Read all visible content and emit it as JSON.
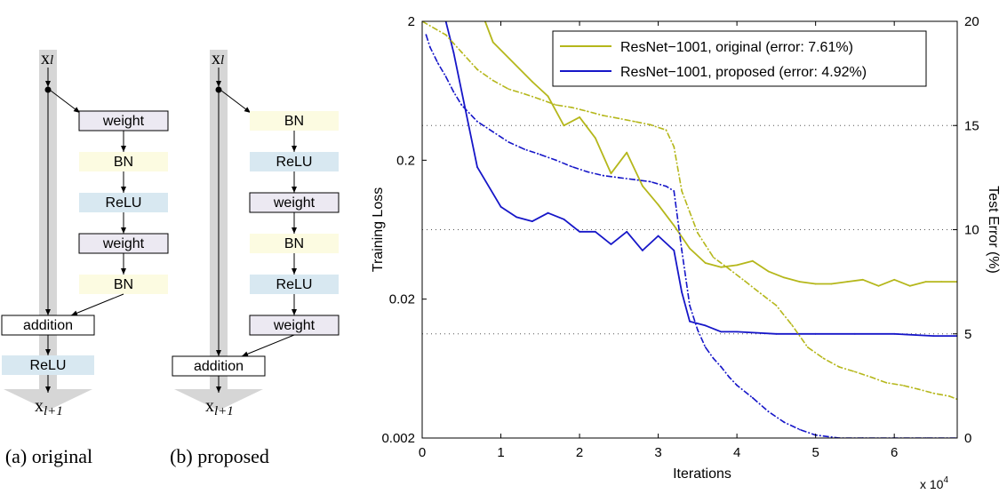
{
  "diagrams": [
    {
      "caption": "(a) original",
      "input_label": "x",
      "input_sub": "l",
      "output_label": "x",
      "output_sub": "l+1",
      "blocks": [
        {
          "label": "weight",
          "kind": "weight"
        },
        {
          "label": "BN",
          "kind": "bn"
        },
        {
          "label": "ReLU",
          "kind": "relu"
        },
        {
          "label": "weight",
          "kind": "weight"
        },
        {
          "label": "BN",
          "kind": "bn"
        }
      ],
      "addition_label": "addition",
      "after_label": "ReLU"
    },
    {
      "caption": "(b) proposed",
      "input_label": "x",
      "input_sub": "l",
      "output_label": "x",
      "output_sub": "l+1",
      "blocks": [
        {
          "label": "BN",
          "kind": "bn"
        },
        {
          "label": "ReLU",
          "kind": "relu"
        },
        {
          "label": "weight",
          "kind": "weight"
        },
        {
          "label": "BN",
          "kind": "bn"
        },
        {
          "label": "ReLU",
          "kind": "relu"
        },
        {
          "label": "weight",
          "kind": "weight"
        }
      ],
      "addition_label": "addition"
    }
  ],
  "colors": {
    "weight": "#ece9f2",
    "bn": "#fcfbe1",
    "relu": "#d8e8f1",
    "shortcut": "#d6d6d6",
    "original": "#b5b71b",
    "proposed": "#1616c8"
  },
  "chart_data": {
    "type": "line",
    "xlabel": "Iterations",
    "x_multiplier": "x 10",
    "x_multiplier_exp": "4",
    "ylabel_left": "Training Loss",
    "ylabel_right": "Test Error (%)",
    "xlim": [
      0,
      6.8
    ],
    "ylim_left": [
      0.002,
      2
    ],
    "yscale_left": "log",
    "ylim_right": [
      0,
      20
    ],
    "x_ticks": [
      "0",
      "1",
      "2",
      "3",
      "4",
      "5",
      "6"
    ],
    "y_left_ticks": [
      "0.002",
      "0.02",
      "0.2",
      "2"
    ],
    "y_right_ticks": [
      "0",
      "5",
      "10",
      "15",
      "20"
    ],
    "grid": "dotted horizontal at right-axis ticks",
    "legend_position": "top-right",
    "legend": [
      {
        "label": "ResNet−1001, original (error: 7.61%)",
        "color": "original"
      },
      {
        "label": "ResNet−1001, proposed (error: 4.92%)",
        "color": "proposed"
      }
    ],
    "series": [
      {
        "name": "ResNet−1001, original (error: 7.61%)",
        "role": "test_error",
        "color": "original",
        "style": "solid",
        "x": [
          0.8,
          0.9,
          1.4,
          1.6,
          1.8,
          2.0,
          2.2,
          2.4,
          2.6,
          2.8,
          3.0,
          3.2,
          3.4,
          3.6,
          3.8,
          4.0,
          4.2,
          4.4,
          4.6,
          4.8,
          5.0,
          5.2,
          5.4,
          5.6,
          5.8,
          6.0,
          6.2,
          6.4,
          6.6,
          6.8
        ],
        "y": [
          20.0,
          19.0,
          17.1,
          16.4,
          15.0,
          15.4,
          14.4,
          12.7,
          13.7,
          12.1,
          11.2,
          10.2,
          9.1,
          8.4,
          8.2,
          8.3,
          8.5,
          8.0,
          7.7,
          7.5,
          7.4,
          7.4,
          7.5,
          7.6,
          7.3,
          7.6,
          7.3,
          7.5,
          7.5,
          7.5
        ]
      },
      {
        "name": "ResNet−1001, proposed (error: 4.92%)",
        "role": "test_error",
        "color": "proposed",
        "style": "solid",
        "x": [
          0.3,
          0.4,
          0.7,
          1.0,
          1.2,
          1.4,
          1.6,
          1.8,
          2.0,
          2.2,
          2.4,
          2.6,
          2.8,
          3.0,
          3.2,
          3.3,
          3.4,
          3.6,
          3.8,
          4.0,
          4.5,
          5.0,
          5.5,
          6.0,
          6.5,
          6.8
        ],
        "y": [
          20.0,
          18.5,
          13.0,
          11.1,
          10.6,
          10.4,
          10.8,
          10.5,
          9.9,
          9.9,
          9.3,
          9.9,
          9.0,
          9.7,
          9.0,
          7.0,
          5.6,
          5.4,
          5.1,
          5.1,
          5.0,
          5.0,
          5.0,
          5.0,
          4.9,
          4.9
        ]
      },
      {
        "name": "ResNet−1001, original (error: 7.61%)",
        "role": "training_loss",
        "color": "original",
        "style": "dashed",
        "x": [
          0.0,
          0.3,
          0.5,
          0.7,
          0.9,
          1.1,
          1.3,
          1.5,
          1.7,
          1.9,
          2.1,
          2.3,
          2.5,
          2.7,
          2.9,
          3.1,
          3.2,
          3.3,
          3.5,
          3.7,
          3.9,
          4.1,
          4.3,
          4.5,
          4.7,
          4.9,
          5.1,
          5.3,
          5.5,
          5.7,
          5.9,
          6.1,
          6.3,
          6.5,
          6.7,
          6.8
        ],
        "y": [
          2.0,
          1.6,
          1.2,
          0.9,
          0.75,
          0.65,
          0.6,
          0.55,
          0.5,
          0.48,
          0.45,
          0.42,
          0.4,
          0.38,
          0.36,
          0.33,
          0.25,
          0.12,
          0.06,
          0.04,
          0.033,
          0.027,
          0.022,
          0.018,
          0.013,
          0.009,
          0.0075,
          0.0065,
          0.006,
          0.0055,
          0.005,
          0.0048,
          0.0045,
          0.0042,
          0.004,
          0.0038
        ]
      },
      {
        "name": "ResNet−1001, proposed (error: 4.92%)",
        "role": "training_loss",
        "color": "proposed",
        "style": "dashed",
        "x": [
          0.05,
          0.1,
          0.2,
          0.3,
          0.4,
          0.5,
          0.7,
          0.9,
          1.1,
          1.3,
          1.5,
          1.7,
          1.9,
          2.1,
          2.3,
          2.5,
          2.7,
          2.9,
          3.1,
          3.2,
          3.3,
          3.4,
          3.5,
          3.6,
          3.7,
          3.8,
          3.9,
          4.0,
          4.2,
          4.4,
          4.6,
          4.8,
          5.0,
          5.3,
          5.6,
          6.0,
          6.4,
          6.8
        ],
        "y": [
          1.6,
          1.3,
          1.0,
          0.8,
          0.62,
          0.5,
          0.38,
          0.32,
          0.27,
          0.24,
          0.22,
          0.2,
          0.18,
          0.165,
          0.155,
          0.15,
          0.145,
          0.14,
          0.13,
          0.12,
          0.045,
          0.018,
          0.012,
          0.009,
          0.0075,
          0.0065,
          0.0055,
          0.0048,
          0.0039,
          0.0031,
          0.0026,
          0.0023,
          0.0021,
          0.002,
          0.002,
          0.002,
          0.002,
          0.002
        ]
      }
    ]
  }
}
